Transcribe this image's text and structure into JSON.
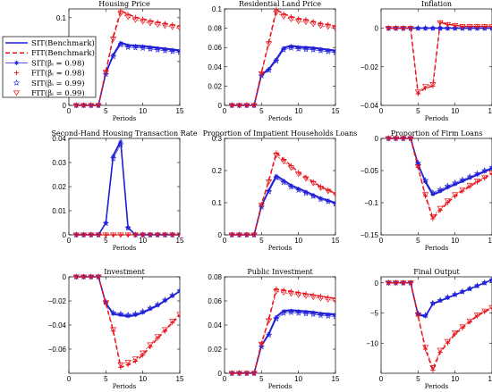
{
  "colors": {
    "sit": "#1f1fd6",
    "fit": "#e8141a"
  },
  "chart_data": {
    "type": "line",
    "x": [
      1,
      2,
      3,
      4,
      5,
      6,
      7,
      8,
      9,
      10,
      11,
      12,
      13,
      14,
      15
    ],
    "xlabel": "Periods",
    "xlim": [
      0,
      15
    ],
    "xticks": [
      0,
      5,
      10,
      15
    ],
    "legend": {
      "placement": "top-left",
      "entries": [
        {
          "key": "sit_bench",
          "label": "SIT(Benchmark)"
        },
        {
          "key": "fit_bench",
          "label": "FIT(Benchmark)"
        },
        {
          "key": "sit_98",
          "label": "SIT(βᵢ = 0.98)"
        },
        {
          "key": "fit_98",
          "label": "FIT(βᵢ = 0.98)"
        },
        {
          "key": "sit_99",
          "label": "SIT(βᵢ = 0.99)"
        },
        {
          "key": "fit_99",
          "label": "FIT(βᵢ = 0.99)"
        }
      ]
    },
    "panels": [
      {
        "title": "Housing Price",
        "ylim": [
          0,
          0.11
        ],
        "yticks": [
          0,
          0.05,
          0.1
        ],
        "ytick_labels": [
          "0",
          "0.05",
          "0.1"
        ],
        "sit": [
          0,
          0,
          0,
          0,
          0.037,
          0.058,
          0.072,
          0.069,
          0.0685,
          0.068,
          0.067,
          0.066,
          0.065,
          0.064,
          0.063
        ],
        "fit": [
          0,
          0,
          0,
          0,
          0.039,
          0.078,
          0.108,
          0.104,
          0.1005,
          0.0985,
          0.0965,
          0.095,
          0.0935,
          0.092,
          0.0905
        ]
      },
      {
        "title": "Residential Land Price",
        "ylim": [
          0,
          0.1
        ],
        "yticks": [
          0,
          0.02,
          0.04,
          0.06,
          0.08,
          0.1
        ],
        "ytick_labels": [
          "0",
          "0.02",
          "0.04",
          "0.06",
          "0.08",
          "0.1"
        ],
        "sit": [
          0,
          0,
          0,
          0,
          0.032,
          0.038,
          0.048,
          0.06,
          0.062,
          0.061,
          0.0605,
          0.06,
          0.059,
          0.058,
          0.057
        ],
        "fit": [
          0,
          0,
          0,
          0,
          0.034,
          0.066,
          0.099,
          0.095,
          0.092,
          0.09,
          0.089,
          0.087,
          0.085,
          0.084,
          0.082
        ]
      },
      {
        "title": "Inflation",
        "ylim": [
          -0.04,
          0.01
        ],
        "yticks": [
          -0.04,
          -0.02,
          0
        ],
        "ytick_labels": [
          "−0.04",
          "−0.02",
          "0"
        ],
        "sit": [
          0,
          0,
          0,
          0,
          0,
          0,
          0,
          0,
          0,
          0,
          0,
          0,
          0,
          0,
          0
        ],
        "fit": [
          0,
          0,
          0,
          0,
          -0.034,
          -0.031,
          -0.03,
          0.003,
          0.002,
          0.0015,
          0.001,
          0.001,
          0.001,
          0.001,
          0.001
        ]
      },
      {
        "title": "Second-Hand Housing Transaction Rate",
        "ylim": [
          0,
          0.04
        ],
        "yticks": [
          0,
          0.01,
          0.02,
          0.03,
          0.04
        ],
        "ytick_labels": [
          "0",
          "0.01",
          "0.02",
          "0.03",
          "0.04"
        ],
        "sit": [
          0,
          0,
          0,
          0,
          0.005,
          0.033,
          0.039,
          0.003,
          0,
          0,
          0,
          0,
          0,
          0,
          0
        ],
        "fit": [
          0,
          0,
          0,
          0,
          0,
          0,
          0,
          0,
          0,
          0,
          0,
          0,
          0,
          0,
          0
        ]
      },
      {
        "title": "Proportion of Impatient Households Loans",
        "ylim": [
          0,
          0.3
        ],
        "yticks": [
          0,
          0.1,
          0.2,
          0.3
        ],
        "ytick_labels": [
          "0",
          "0.1",
          "0.2",
          "0.3"
        ],
        "sit": [
          0,
          0,
          0,
          0,
          0.09,
          0.14,
          0.185,
          0.17,
          0.155,
          0.145,
          0.135,
          0.125,
          0.115,
          0.108,
          0.1
        ],
        "fit": [
          0,
          0,
          0,
          0,
          0.095,
          0.17,
          0.255,
          0.235,
          0.215,
          0.195,
          0.18,
          0.165,
          0.15,
          0.14,
          0.13
        ]
      },
      {
        "title": "Proportion of Firm Loans",
        "ylim": [
          -0.15,
          0
        ],
        "yticks": [
          -0.15,
          -0.1,
          -0.05,
          0
        ],
        "ytick_labels": [
          "−0.15",
          "−0.1",
          "−0.05",
          "0"
        ],
        "sit": [
          0,
          0,
          0,
          0,
          -0.04,
          -0.068,
          -0.088,
          -0.083,
          -0.077,
          -0.072,
          -0.067,
          -0.062,
          -0.057,
          -0.052,
          -0.047
        ],
        "fit": [
          0,
          0,
          0,
          0,
          -0.045,
          -0.09,
          -0.125,
          -0.112,
          -0.1,
          -0.09,
          -0.082,
          -0.075,
          -0.068,
          -0.062,
          -0.055
        ]
      },
      {
        "title": "Investment",
        "ylim": [
          -0.08,
          0
        ],
        "yticks": [
          -0.06,
          -0.04,
          -0.02,
          0
        ],
        "ytick_labels": [
          "−0.06",
          "−0.04",
          "−0.02",
          "0"
        ],
        "sit": [
          0,
          0,
          0,
          0,
          -0.022,
          -0.031,
          -0.032,
          -0.033,
          -0.032,
          -0.03,
          -0.027,
          -0.024,
          -0.02,
          -0.016,
          -0.012
        ],
        "fit": [
          0,
          0,
          0,
          0,
          -0.022,
          -0.045,
          -0.075,
          -0.073,
          -0.07,
          -0.065,
          -0.058,
          -0.051,
          -0.045,
          -0.038,
          -0.032
        ]
      },
      {
        "title": "Public Investment",
        "ylim": [
          0,
          0.08
        ],
        "yticks": [
          0,
          0.02,
          0.04,
          0.06,
          0.08
        ],
        "ytick_labels": [
          "0",
          "0.02",
          "0.04",
          "0.06",
          "0.08"
        ],
        "sit": [
          0,
          0,
          0,
          0,
          0.023,
          0.033,
          0.047,
          0.052,
          0.0525,
          0.052,
          0.0515,
          0.051,
          0.05,
          0.0495,
          0.049
        ],
        "fit": [
          0,
          0,
          0,
          0,
          0.025,
          0.045,
          0.07,
          0.069,
          0.068,
          0.067,
          0.066,
          0.065,
          0.064,
          0.063,
          0.062
        ]
      },
      {
        "title": "Final Output",
        "ylim": [
          -15,
          1
        ],
        "yticks": [
          -10,
          -5,
          0
        ],
        "ytick_labels": [
          "−10",
          "−5",
          "0"
        ],
        "sit": [
          0,
          0,
          0,
          0,
          -5.3,
          -5.6,
          -3.5,
          -3.0,
          -2.5,
          -2.0,
          -1.5,
          -1.0,
          -0.5,
          0,
          0.5
        ],
        "fit": [
          0,
          0,
          0,
          0,
          -5.5,
          -11,
          -14.5,
          -11.5,
          -10,
          -8.5,
          -7.5,
          -6.5,
          -5.5,
          -4.8,
          -4.2
        ]
      }
    ]
  }
}
